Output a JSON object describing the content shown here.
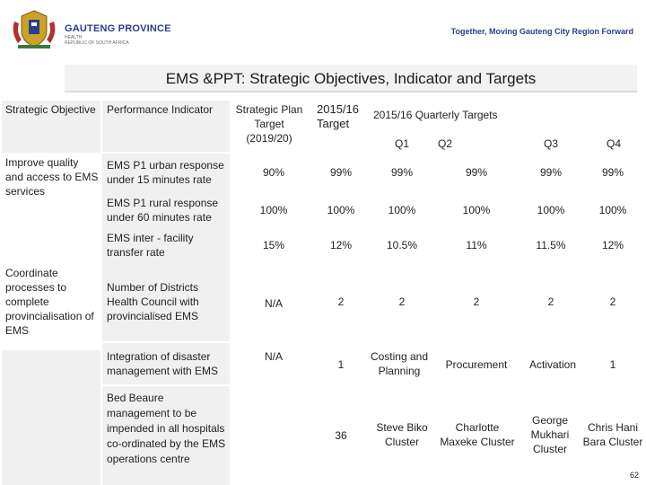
{
  "header": {
    "province_name": "GAUTENG PROVINCE",
    "department": "HEALTH",
    "republic": "REPUBLIC OF SOUTH AFRICA",
    "slogan": "Together, Moving Gauteng City Region Forward",
    "colors": {
      "brand_blue": "#2b3d8f",
      "crest_gold": "#c9a227",
      "crest_red": "#b03030"
    }
  },
  "title": "EMS &PPT: Strategic Objectives, Indicator and Targets",
  "table": {
    "headers": {
      "objective": "Strategic Objective",
      "indicator": "Performance Indicator",
      "plan_target": "Strategic Plan Target (2019/20)",
      "annual_target": "2015/16 Target",
      "quarterly": "2015/16 Quarterly Targets",
      "q1": "Q1",
      "q2": "Q2",
      "q3": "Q3",
      "q4": "Q4"
    },
    "objectives": [
      "Improve quality and access to EMS services",
      "Coordinate processes to complete provincialisation of EMS"
    ],
    "rows": [
      {
        "indicator": "EMS P1 urban response under 15 minutes rate",
        "plan": "90%",
        "target": "99%",
        "q1": "99%",
        "q2": "99%",
        "q3": "99%",
        "q4": "99%"
      },
      {
        "indicator": "EMS P1 rural response under 60 minutes rate",
        "plan": "100%",
        "target": "100%",
        "q1": "100%",
        "q2": "100%",
        "q3": "100%",
        "q4": "100%"
      },
      {
        "indicator": "EMS inter - facility transfer rate",
        "plan": "15%",
        "target": "12%",
        "q1": "10.5%",
        "q2": "11%",
        "q3": "11.5%",
        "q4": "12%"
      },
      {
        "indicator": "Number of Districts Health Council with provincialised EMS",
        "plan": "N/A",
        "target": "2",
        "q1": "2",
        "q2": "2",
        "q3": "2",
        "q4": "2"
      },
      {
        "indicator": "Integration of disaster management with EMS",
        "plan": "N/A",
        "target": "1",
        "q1": "Costing and Planning",
        "q2": "Procurement",
        "q3": "Activation",
        "q4": "1"
      },
      {
        "indicator": "Bed Beaure management to be impended in all hospitals co-ordinated by the EMS operations centre",
        "plan": "",
        "target": "36",
        "q1": "Steve Biko Cluster",
        "q2": "Charlotte Maxeke Cluster",
        "q3": "George Mukhari Cluster",
        "q4": "Chris Hani Bara Cluster"
      }
    ]
  },
  "page_number": "62"
}
